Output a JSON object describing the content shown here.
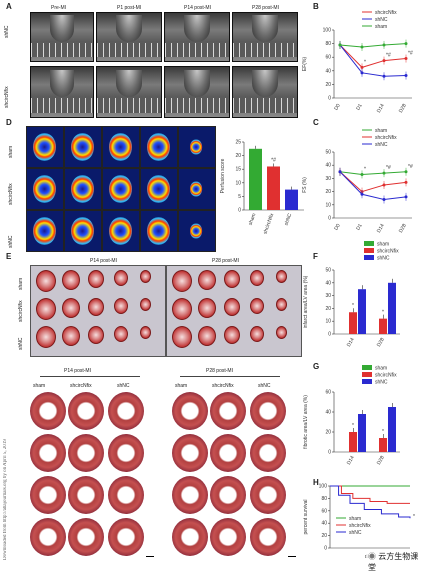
{
  "panel_A": {
    "letter": "A",
    "col_titles": [
      "Pre-MI",
      "P1 post-MI",
      "P14 post-MI",
      "P28 post-MI"
    ],
    "row_labels": [
      "shNC",
      "shcircNfix"
    ]
  },
  "panel_B": {
    "letter": "B",
    "legend": [
      "shcircNfix",
      "shNC",
      "sham"
    ],
    "ylabel": "EF(%)",
    "annotations": [
      "*",
      "*#",
      "*#"
    ]
  },
  "panel_C": {
    "letter": "C",
    "legend": [
      "sham",
      "shcircNfix",
      "shNC"
    ],
    "ylabel": "FS (%)",
    "annotations": [
      "*",
      "*#",
      "*#"
    ]
  },
  "panel_D": {
    "letter": "D",
    "row_labels": [
      "sham",
      "shcircNfix",
      "shNC"
    ],
    "ylabel": "Perfusion score",
    "annotation": "*#"
  },
  "panel_E": {
    "letter": "E",
    "col_titles": [
      "P14 post-MI",
      "P28 post-MI"
    ],
    "row_labels": [
      "sham",
      "shcircNfix",
      "shNC"
    ]
  },
  "panel_F": {
    "letter": "F",
    "legend": [
      "sham",
      "shcircNfix",
      "shNC"
    ],
    "ylabel": "infarct area/LV area (%)",
    "annotations": [
      "*",
      "*"
    ]
  },
  "panel_G": {
    "letter": "G",
    "legend": [
      "sham",
      "shcircNfix",
      "shNC"
    ],
    "ylabel": "fibrotic area/LV area (%)",
    "annotations": [
      "*",
      "*"
    ]
  },
  "panel_H": {
    "letter": "H",
    "legend": [
      "sham",
      "shcircNfix",
      "shNC"
    ],
    "ylabel": "percent survival",
    "xlabel": "days",
    "annotation": "*"
  },
  "histology": {
    "titles": [
      "P14 post-MI",
      "P28 post-MI"
    ],
    "left_cols": [
      "sham",
      "shcircNfix",
      "shNC"
    ],
    "right_cols": [
      "sham",
      "shcircNfix",
      "shNC"
    ]
  },
  "watermark_side": "Downloaded from http://ahajournals.org by on April 5, 2019",
  "wechat_badge": "云方生物课堂",
  "colors": {
    "sham": "#33aa33",
    "shcircNfix": "#e03030",
    "shNC": "#2a2ad0"
  },
  "chart_data": [
    {
      "type": "line",
      "id": "B",
      "categories": [
        "D0",
        "D1",
        "D14",
        "D28"
      ],
      "ylim": [
        0,
        100
      ],
      "yticks": [
        0,
        20,
        40,
        60,
        80,
        100
      ],
      "series": [
        {
          "name": "shcircNfix",
          "values": [
            78,
            45,
            55,
            58
          ]
        },
        {
          "name": "shNC",
          "values": [
            78,
            37,
            32,
            33
          ]
        },
        {
          "name": "sham",
          "values": [
            78,
            75,
            78,
            80
          ]
        }
      ]
    },
    {
      "type": "line",
      "id": "C",
      "categories": [
        "D0",
        "D1",
        "D14",
        "D28"
      ],
      "ylim": [
        0,
        50
      ],
      "yticks": [
        0,
        10,
        20,
        30,
        40,
        50
      ],
      "series": [
        {
          "name": "sham",
          "values": [
            35,
            33,
            34,
            35
          ]
        },
        {
          "name": "shcircNfix",
          "values": [
            35,
            20,
            25,
            27
          ]
        },
        {
          "name": "shNC",
          "values": [
            35,
            18,
            14,
            16
          ]
        }
      ]
    },
    {
      "type": "bar",
      "id": "D",
      "categories": [
        "sham",
        "shcircNfix",
        "shNC"
      ],
      "ylim": [
        0,
        25
      ],
      "yticks": [
        0,
        5,
        10,
        15,
        20,
        25
      ],
      "values": [
        22.5,
        16,
        7.5
      ]
    },
    {
      "type": "bar",
      "id": "F",
      "categories": [
        "D14",
        "D28"
      ],
      "ylim": [
        0,
        50
      ],
      "yticks": [
        0,
        10,
        20,
        30,
        40,
        50
      ],
      "series": [
        {
          "name": "sham",
          "values": [
            0,
            0
          ]
        },
        {
          "name": "shcircNfix",
          "values": [
            17,
            12
          ]
        },
        {
          "name": "shNC",
          "values": [
            35,
            40
          ]
        }
      ]
    },
    {
      "type": "bar",
      "id": "G",
      "categories": [
        "D14",
        "D28"
      ],
      "ylim": [
        0,
        60
      ],
      "yticks": [
        0,
        20,
        40,
        60
      ],
      "series": [
        {
          "name": "sham",
          "values": [
            0,
            0
          ]
        },
        {
          "name": "shcircNfix",
          "values": [
            20,
            14
          ]
        },
        {
          "name": "shNC",
          "values": [
            38,
            45
          ]
        }
      ]
    },
    {
      "type": "line",
      "id": "H",
      "xlim": [
        0,
        28
      ],
      "ylim": [
        0,
        100
      ],
      "yticks": [
        0,
        20,
        40,
        60,
        80,
        100
      ],
      "series": [
        {
          "name": "sham",
          "x": [
            0,
            28
          ],
          "y": [
            100,
            100
          ]
        },
        {
          "name": "shcircNfix",
          "x": [
            0,
            4,
            8,
            14,
            20,
            28
          ],
          "y": [
            100,
            88,
            80,
            75,
            72,
            72
          ]
        },
        {
          "name": "shNC",
          "x": [
            0,
            3,
            7,
            12,
            18,
            24,
            28
          ],
          "y": [
            100,
            85,
            72,
            62,
            55,
            50,
            48
          ]
        }
      ]
    }
  ]
}
